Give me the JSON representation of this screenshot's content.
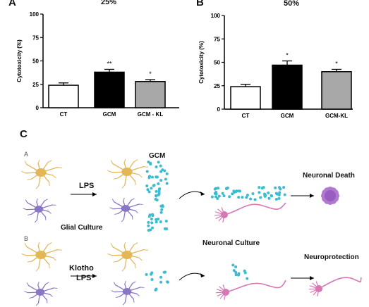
{
  "chart_data": [
    {
      "type": "bar",
      "panel": "A",
      "title": "25%",
      "ylabel": "Cytotoxicity (%)",
      "ylim": [
        0,
        100
      ],
      "yticks": [
        "0",
        "25",
        "50",
        "75",
        "100"
      ],
      "categories": [
        "CT",
        "GCM",
        "GCM - KL"
      ],
      "values": [
        24,
        38,
        28
      ],
      "errors": [
        2.5,
        3,
        2
      ],
      "significance": [
        "",
        "**",
        "*"
      ],
      "bar_colors": [
        "#ffffff",
        "#000000",
        "#a8a8a8"
      ]
    },
    {
      "type": "bar",
      "panel": "B",
      "title": "50%",
      "ylabel": "Cytotoxicity (%)",
      "ylim": [
        0,
        100
      ],
      "yticks": [
        "0",
        "25",
        "50",
        "75",
        "100"
      ],
      "categories": [
        "CT",
        "GCM",
        "GCM-KL"
      ],
      "values": [
        24,
        47,
        40
      ],
      "errors": [
        2.5,
        4.5,
        2.5
      ],
      "significance": [
        "",
        "*",
        "*"
      ],
      "bar_colors": [
        "#ffffff",
        "#000000",
        "#a8a8a8"
      ]
    }
  ],
  "diagram": {
    "panel": "C",
    "row_a_label": "A",
    "row_b_label": "B",
    "lps": "LPS",
    "gcm": "GCM",
    "glial_culture": "Glial Culture",
    "klotho": "Klotho",
    "lps_b": "LPS",
    "neuronal_culture": "Neuronal Culture",
    "neuronal_death": "Neuronal Death",
    "neuroprotection": "Neuroprotection",
    "colors": {
      "astrocyte": "#e3b656",
      "microglia": "#8a76c6",
      "neuron": "#d677b6",
      "gcm_dots": "#3bbcd0",
      "dead_neuron": "#b079cf"
    }
  }
}
